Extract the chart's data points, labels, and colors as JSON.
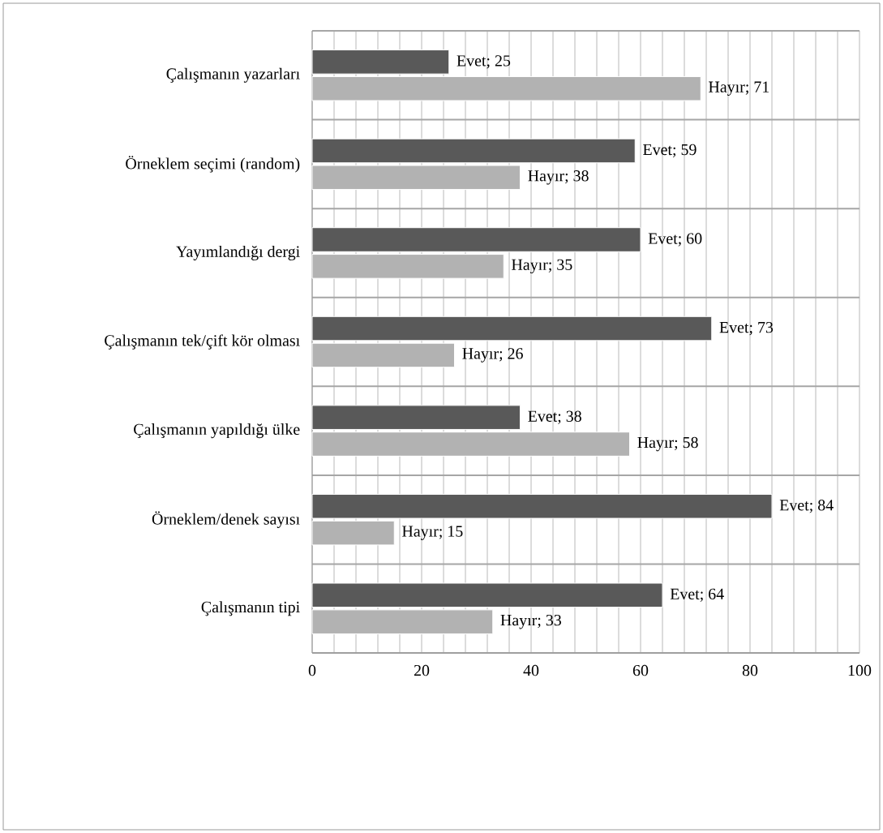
{
  "chart_data": {
    "type": "bar",
    "orientation": "horizontal",
    "categories": [
      "Çalışmanın yazarları",
      "Örneklem seçimi (random)",
      "Yayımlandığı dergi",
      "Çalışmanın tek/çift kör olması",
      "Çalışmanın yapıldığı ülke",
      "Örneklem/denek sayısı",
      "Çalışmanın tipi"
    ],
    "series": [
      {
        "color": "#595959",
        "values": [
          25,
          59,
          60,
          73,
          38,
          84,
          64
        ],
        "value_labels": [
          "Evet; 25",
          "Evet; 59",
          "Evet; 60",
          "Evet; 73",
          "Evet; 38",
          "Evet; 84",
          "Evet; 64"
        ]
      },
      {
        "color": "#b2b2b2",
        "values": [
          71,
          38,
          35,
          26,
          58,
          15,
          33
        ],
        "value_labels": [
          "Hayır; 71",
          "Hayır; 38",
          "Hayır; 35",
          "Hayır; 26",
          "Hayır; 58",
          "Hayır; 15",
          "Hayır; 33"
        ]
      }
    ],
    "xlim": [
      0,
      100
    ],
    "xticks": [
      0,
      {
        "value": 4,
        "label": null
      },
      {
        "value": 8,
        "label": null
      },
      {
        "value": 12,
        "label": null
      },
      {
        "value": 16,
        "label": null
      },
      20,
      {
        "value": 24,
        "label": null
      },
      {
        "value": 28,
        "label": null
      },
      {
        "value": 32,
        "label": null
      },
      {
        "value": 36,
        "label": null
      },
      40,
      {
        "value": 44,
        "label": null
      },
      {
        "value": 48,
        "label": null
      },
      {
        "value": 52,
        "label": null
      },
      {
        "value": 56,
        "label": null
      },
      60,
      {
        "value": 64,
        "label": null
      },
      {
        "value": 68,
        "label": null
      },
      {
        "value": 72,
        "label": null
      },
      {
        "value": 76,
        "label": null
      },
      80,
      {
        "value": 84,
        "label": null
      },
      {
        "value": 88,
        "label": null
      },
      {
        "value": 92,
        "label": null
      },
      {
        "value": 96,
        "label": null
      },
      100
    ],
    "grid": true
  }
}
